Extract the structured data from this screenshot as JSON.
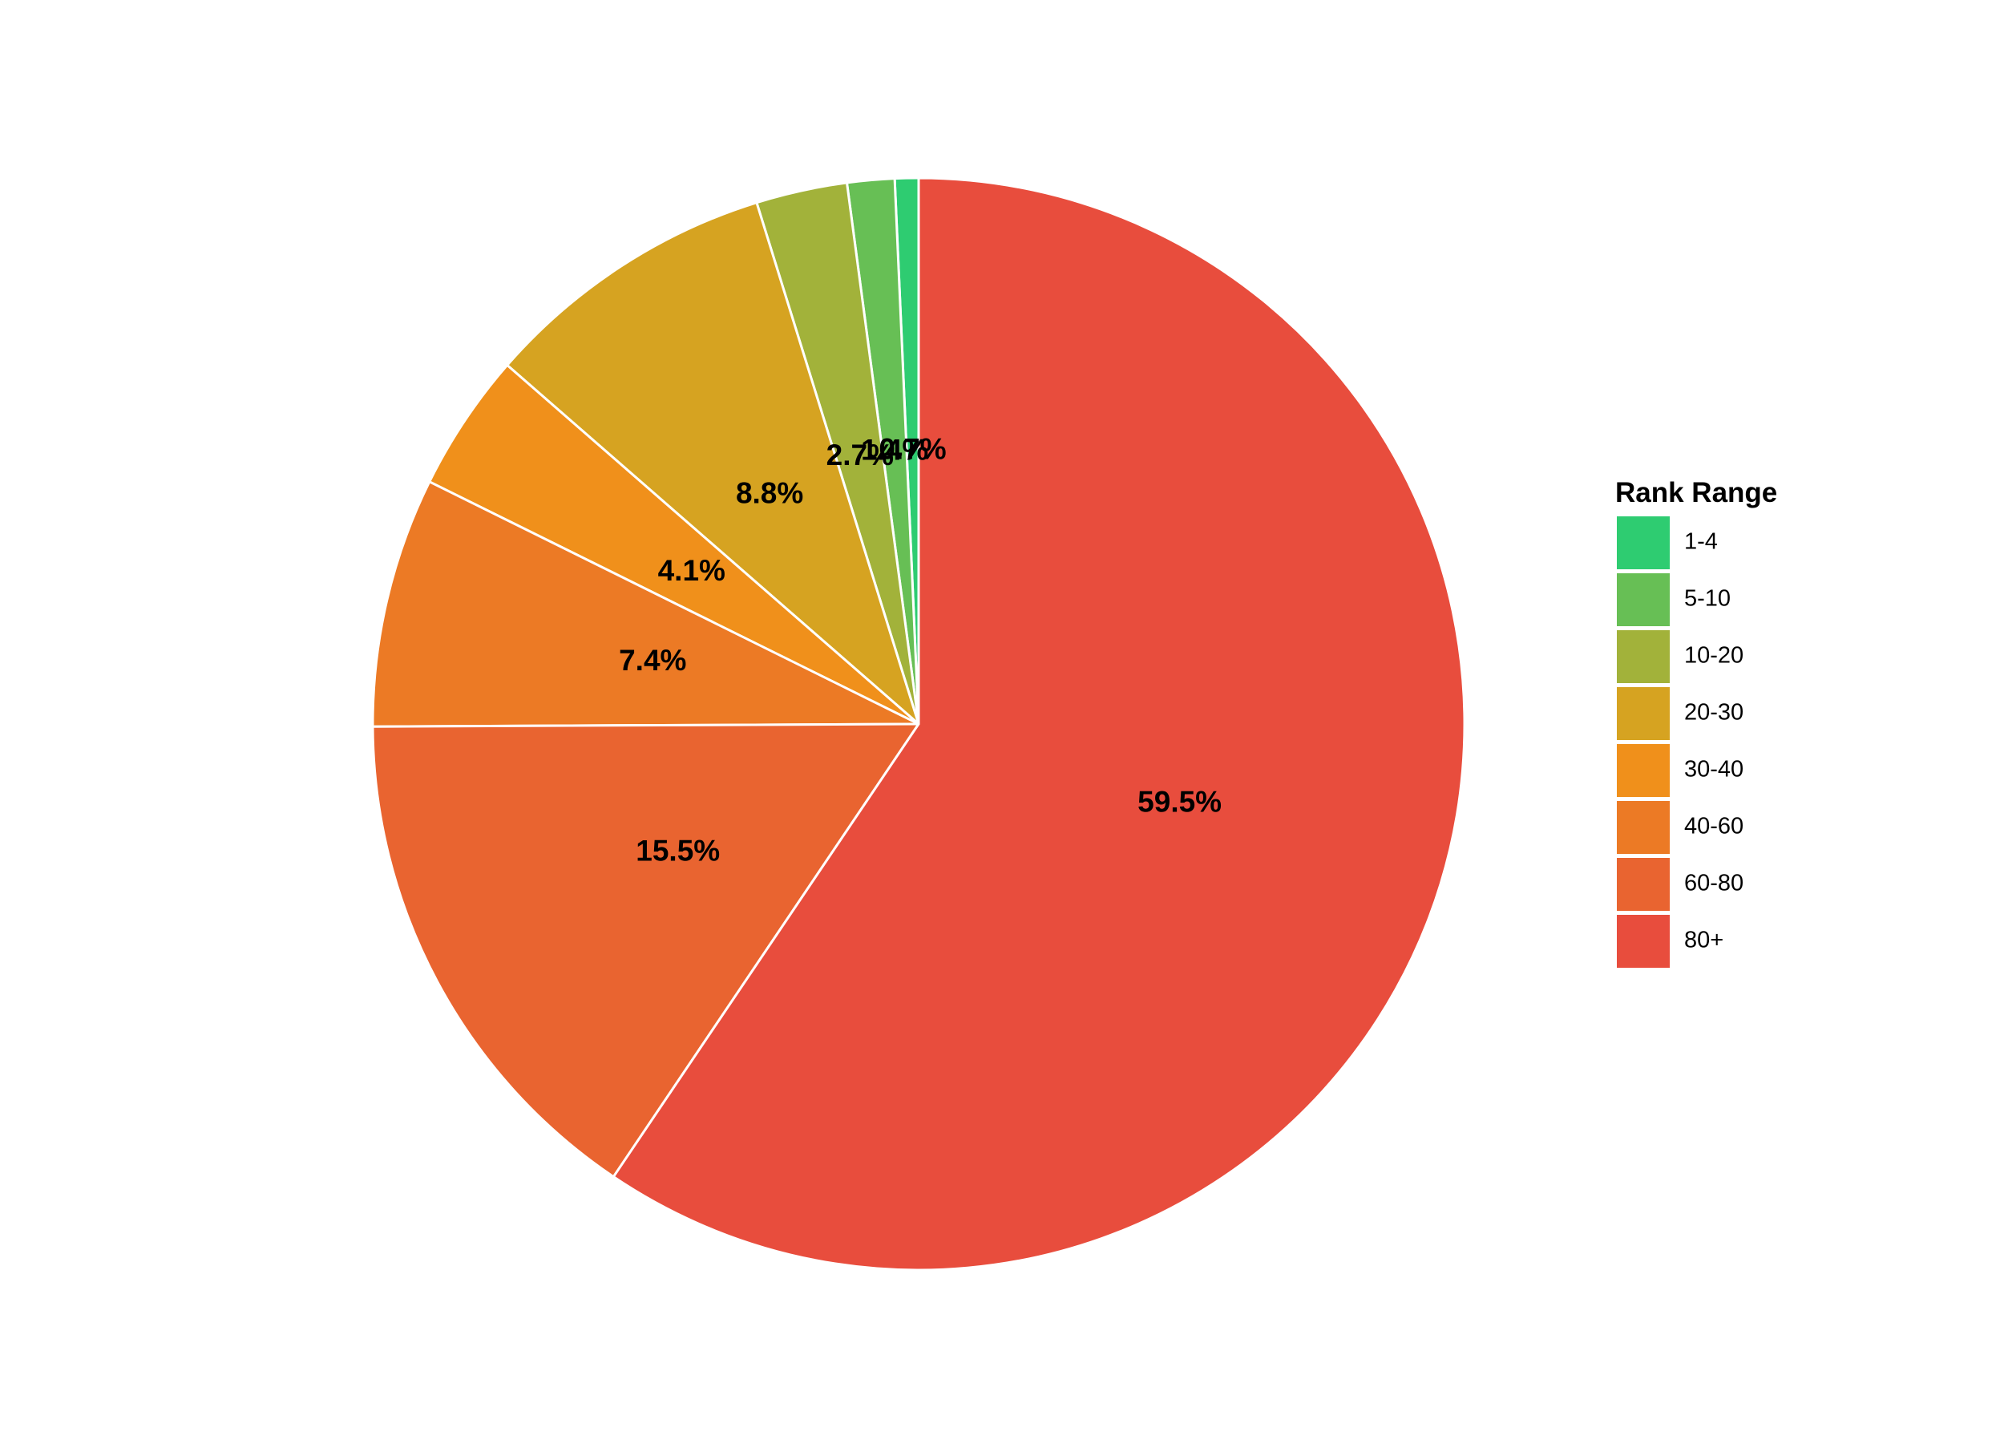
{
  "chart_data": {
    "type": "pie",
    "legend_title": "Rank Range",
    "legend_position": "right",
    "start": "top",
    "direction": "counterclockwise",
    "categories": [
      "1-4",
      "5-10",
      "10-20",
      "20-30",
      "30-40",
      "40-60",
      "60-80",
      "80+"
    ],
    "values": [
      0.7,
      1.4,
      2.7,
      8.8,
      4.1,
      7.4,
      15.5,
      59.5
    ],
    "labels": [
      "0.7%",
      "1.4%",
      "2.7%",
      "8.8%",
      "4.1%",
      "7.4%",
      "15.5%",
      "59.5%"
    ],
    "colors": [
      "#2ecc71",
      "#67bf55",
      "#a2b23a",
      "#d6a321",
      "#f0901b",
      "#ec7a25",
      "#e96430",
      "#e84d3d"
    ]
  }
}
